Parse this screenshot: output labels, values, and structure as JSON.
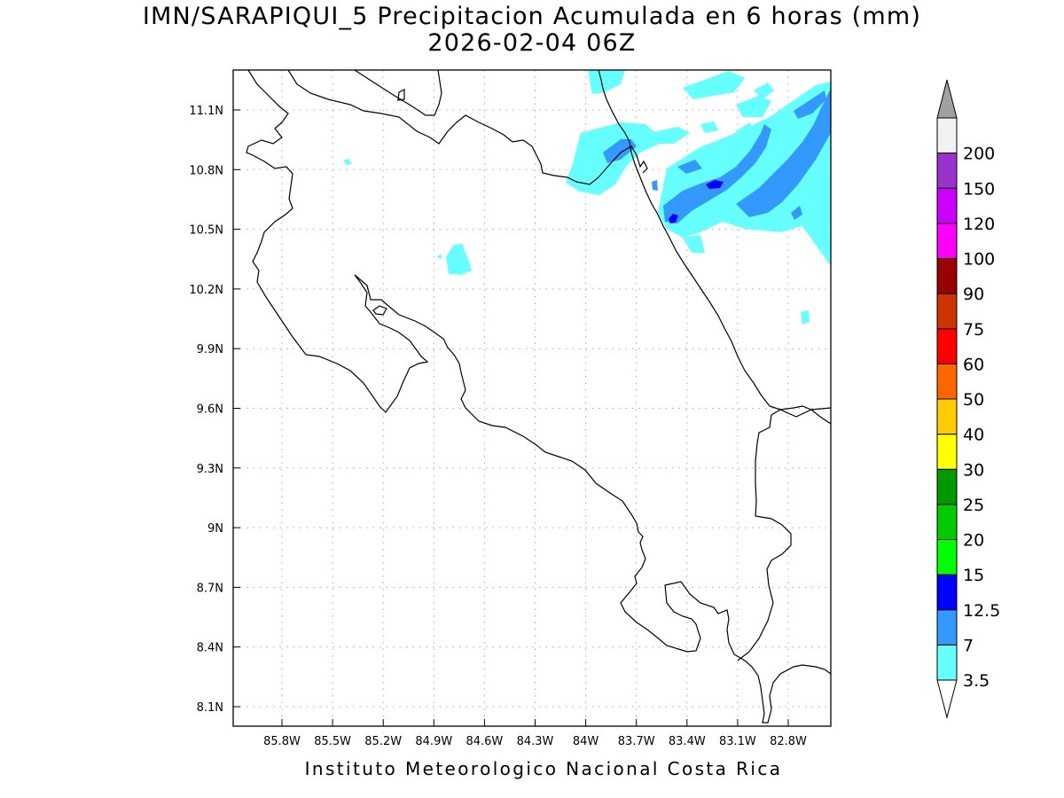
{
  "figure": {
    "title_line1": "IMN/SARAPIQUI_5 Precipitacion Acumulada en 6 horas (mm)",
    "title_line2": "2026-02-04 06Z",
    "credit": "Instituto Meteorologico Nacional Costa Rica"
  },
  "map": {
    "lat_ticks": [
      {
        "value": 11.1,
        "label": "11.1N"
      },
      {
        "value": 10.8,
        "label": "10.8N"
      },
      {
        "value": 10.5,
        "label": "10.5N"
      },
      {
        "value": 10.2,
        "label": "10.2N"
      },
      {
        "value": 9.9,
        "label": "9.9N"
      },
      {
        "value": 9.6,
        "label": "9.6N"
      },
      {
        "value": 9.3,
        "label": "9.3N"
      },
      {
        "value": 9.0,
        "label": "9N"
      },
      {
        "value": 8.7,
        "label": "8.7N"
      },
      {
        "value": 8.4,
        "label": "8.4N"
      },
      {
        "value": 8.1,
        "label": "8.1N"
      }
    ],
    "lon_ticks": [
      {
        "value": -85.8,
        "label": "85.8W"
      },
      {
        "value": -85.5,
        "label": "85.5W"
      },
      {
        "value": -85.2,
        "label": "85.2W"
      },
      {
        "value": -84.9,
        "label": "84.9W"
      },
      {
        "value": -84.6,
        "label": "84.6W"
      },
      {
        "value": -84.3,
        "label": "84.3W"
      },
      {
        "value": -84.0,
        "label": "84W"
      },
      {
        "value": -83.7,
        "label": "83.7W"
      },
      {
        "value": -83.4,
        "label": "83.4W"
      },
      {
        "value": -83.1,
        "label": "83.1W"
      },
      {
        "value": -82.8,
        "label": "82.8W"
      }
    ],
    "gridlines": "dotted",
    "line_color": "#000000"
  },
  "colorbar": {
    "levels": [
      {
        "label": "3.5",
        "color": "#66ffff"
      },
      {
        "label": "7",
        "color": "#3399ff"
      },
      {
        "label": "12.5",
        "color": "#0000ff"
      },
      {
        "label": "15",
        "color": "#00ff00"
      },
      {
        "label": "20",
        "color": "#00cc00"
      },
      {
        "label": "25",
        "color": "#009900"
      },
      {
        "label": "30",
        "color": "#ffff00"
      },
      {
        "label": "40",
        "color": "#ffcc00"
      },
      {
        "label": "50",
        "color": "#ff6600"
      },
      {
        "label": "60",
        "color": "#ff0000"
      },
      {
        "label": "75",
        "color": "#cc3300"
      },
      {
        "label": "90",
        "color": "#990000"
      },
      {
        "label": "100",
        "color": "#ff00ff"
      },
      {
        "label": "120",
        "color": "#cc00ff"
      },
      {
        "label": "150",
        "color": "#9933cc"
      },
      {
        "label": "200",
        "color": "#f2f2f2"
      }
    ],
    "top_arrow_color": "#a0a0a0",
    "bottom_arrow_color": "#ffffff"
  }
}
